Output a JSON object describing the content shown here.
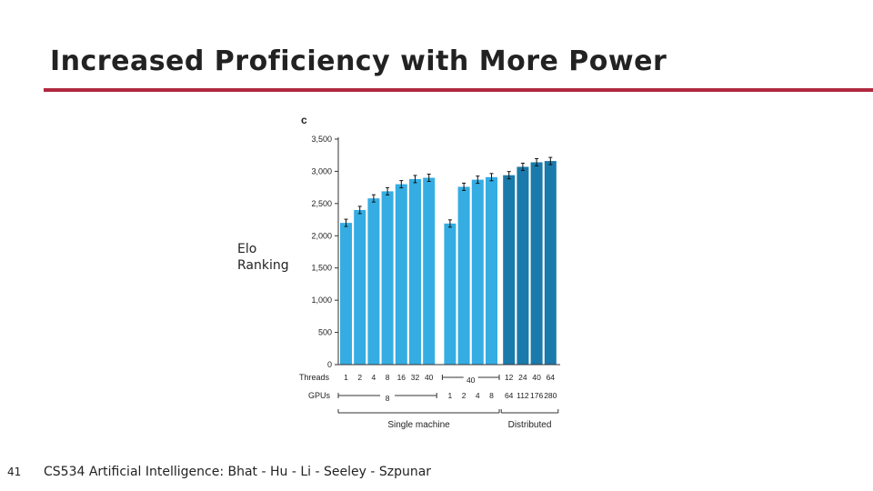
{
  "title": "Increased Proficiency with More Power",
  "y_caption": [
    "Elo",
    "Ranking"
  ],
  "footer": "CS534 Artificial Intelligence: Bhat - Hu - Li - Seeley - Szpunar",
  "page_number": "41",
  "colors": {
    "accent": "#b0293f",
    "bar_light": "#35ade2",
    "bar_dark": "#1a7aab",
    "text": "#222222"
  },
  "chart_data": {
    "type": "bar",
    "panel_label": "c",
    "ylabel": "Elo Ranking",
    "ylim": [
      0,
      3500
    ],
    "yticks": [
      0,
      500,
      1000,
      1500,
      2000,
      2500,
      3000,
      3500
    ],
    "ytick_labels": [
      "0",
      "500",
      "1,000",
      "1,500",
      "2,000",
      "2,500",
      "3,000",
      "3,500"
    ],
    "row_labels": {
      "threads": "Threads",
      "gpus": "GPUs"
    },
    "groups": [
      {
        "name": "Single machine",
        "style": "light",
        "bars": [
          {
            "threads": "1",
            "gpus": "",
            "value": 2200
          },
          {
            "threads": "2",
            "gpus": "",
            "value": 2400
          },
          {
            "threads": "4",
            "gpus": "",
            "value": 2580
          },
          {
            "threads": "8",
            "gpus": "",
            "value": 2690
          },
          {
            "threads": "16",
            "gpus": "",
            "value": 2800
          },
          {
            "threads": "32",
            "gpus": "",
            "value": 2880
          },
          {
            "threads": "40",
            "gpus": "",
            "value": 2900
          },
          {
            "threads": "",
            "gpus": "1",
            "value": 2190
          },
          {
            "threads": "",
            "gpus": "2",
            "value": 2760
          },
          {
            "threads": "",
            "gpus": "4",
            "value": 2870
          },
          {
            "threads": "",
            "gpus": "8",
            "value": 2910
          }
        ],
        "shared_threads_label": "40",
        "shared_gpus_label": "8"
      },
      {
        "name": "Distributed",
        "style": "dark",
        "bars": [
          {
            "threads": "12",
            "gpus": "64",
            "value": 2940
          },
          {
            "threads": "24",
            "gpus": "112",
            "value": 3070
          },
          {
            "threads": "40",
            "gpus": "176",
            "value": 3140
          },
          {
            "threads": "64",
            "gpus": "280",
            "value": 3160
          }
        ]
      }
    ]
  }
}
